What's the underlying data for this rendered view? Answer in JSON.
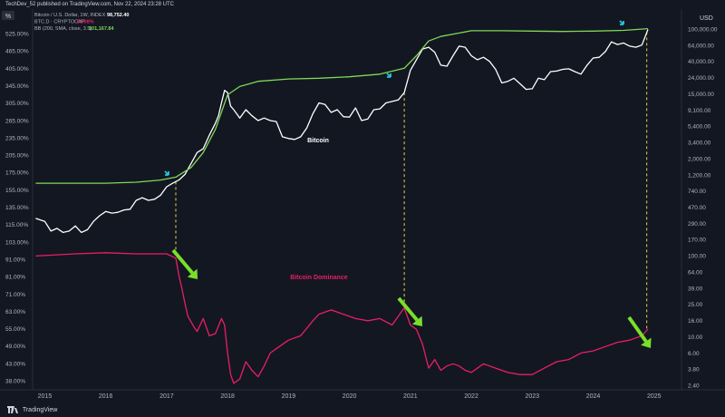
{
  "header": {
    "published": "TechDev_52 published on TradingView.com, Nov 22, 2024 23:28 UTC"
  },
  "legend": {
    "line1": {
      "symbol": "Bitcoin / U.S. Dollar, 1W, INDEX",
      "value": "98,752.40"
    },
    "line2": {
      "symbol": "BTC.D · CRYPTOCAP",
      "value": "61.08%"
    },
    "line3": {
      "symbol": "BB (200, SMA, close, 3.5)",
      "value": "101,167.84"
    }
  },
  "footer": {
    "brand": "TradingView"
  },
  "colors": {
    "background": "#131722",
    "btc": "#ffffff",
    "dominance": "#e91e63",
    "bb": "#7ed956",
    "arrow_green": "#79e02a",
    "arrow_cyan": "#26c6da",
    "guide": "#e8d44d"
  },
  "chart_data": {
    "type": "line",
    "left_axis": {
      "label": "%",
      "ticks": [
        "525.00%",
        "465.00%",
        "405.00%",
        "345.00%",
        "305.00%",
        "265.00%",
        "235.00%",
        "205.00%",
        "175.00%",
        "155.00%",
        "135.00%",
        "115.00%",
        "103.00%",
        "91.00%",
        "81.00%",
        "71.00%",
        "63.00%",
        "55.00%",
        "49.00%",
        "43.00%",
        "38.00%"
      ]
    },
    "right_axis": {
      "label": "USD",
      "scale": "log",
      "ticks": [
        "100,000.00",
        "64,000.00",
        "40,000.00",
        "24,000.00",
        "15,000.00",
        "9,100.00",
        "5,400.00",
        "3,400.00",
        "2,000.00",
        "1,200.00",
        "740.00",
        "470.00",
        "290.00",
        "170.00",
        "100.00",
        "64.00",
        "39.00",
        "25.00",
        "16.00",
        "10.00",
        "6.00",
        "3.80",
        "2.40"
      ]
    },
    "x_ticks": [
      "2015",
      "2016",
      "2017",
      "2018",
      "2019",
      "2020",
      "2021",
      "2022",
      "2023",
      "2024",
      "2025"
    ],
    "annotations": [
      "Bitcoin",
      "Bitcoin Dominance"
    ],
    "guide_years": [
      2017.15,
      2020.9,
      2024.88
    ],
    "series": [
      {
        "name": "Bitcoin / U.S. Dollar",
        "x": [
          2014.85,
          2015.0,
          2015.1,
          2015.2,
          2015.3,
          2015.4,
          2015.5,
          2015.6,
          2015.7,
          2015.8,
          2015.9,
          2016.0,
          2016.1,
          2016.2,
          2016.3,
          2016.4,
          2016.5,
          2016.6,
          2016.7,
          2016.8,
          2016.9,
          2017.0,
          2017.1,
          2017.2,
          2017.3,
          2017.4,
          2017.5,
          2017.6,
          2017.7,
          2017.8,
          2017.85,
          2017.9,
          2017.95,
          2018.0,
          2018.05,
          2018.1,
          2018.2,
          2018.3,
          2018.4,
          2018.5,
          2018.6,
          2018.7,
          2018.8,
          2018.9,
          2019.0,
          2019.1,
          2019.2,
          2019.3,
          2019.4,
          2019.5,
          2019.6,
          2019.7,
          2019.8,
          2019.9,
          2020.0,
          2020.1,
          2020.2,
          2020.3,
          2020.4,
          2020.5,
          2020.6,
          2020.7,
          2020.8,
          2020.9,
          2021.0,
          2021.1,
          2021.2,
          2021.3,
          2021.4,
          2021.5,
          2021.6,
          2021.7,
          2021.8,
          2021.9,
          2022.0,
          2022.1,
          2022.2,
          2022.3,
          2022.4,
          2022.5,
          2022.6,
          2022.7,
          2022.8,
          2022.9,
          2023.0,
          2023.1,
          2023.2,
          2023.3,
          2023.4,
          2023.5,
          2023.6,
          2023.7,
          2023.8,
          2023.9,
          2024.0,
          2024.1,
          2024.2,
          2024.3,
          2024.4,
          2024.5,
          2024.6,
          2024.7,
          2024.8,
          2024.9
        ],
        "values": [
          350,
          320,
          240,
          260,
          230,
          240,
          280,
          230,
          250,
          320,
          380,
          430,
          410,
          420,
          450,
          460,
          600,
          650,
          600,
          620,
          700,
          900,
          1000,
          1100,
          1300,
          1800,
          2500,
          2800,
          4200,
          6000,
          7500,
          11000,
          16000,
          15000,
          10000,
          9000,
          7000,
          9000,
          7500,
          6500,
          7000,
          6500,
          6300,
          4000,
          3800,
          3700,
          4000,
          5200,
          8000,
          11000,
          10500,
          8300,
          9000,
          7300,
          7200,
          9500,
          6500,
          6800,
          9000,
          9200,
          11000,
          11500,
          12000,
          15000,
          29000,
          40000,
          55000,
          58000,
          50000,
          34000,
          33000,
          45000,
          60000,
          58000,
          45000,
          40000,
          43000,
          38000,
          30000,
          20000,
          21000,
          23000,
          19500,
          16500,
          16800,
          23000,
          22000,
          28000,
          28500,
          30000,
          30500,
          28000,
          26000,
          34000,
          42000,
          43000,
          51000,
          68000,
          63000,
          66000,
          60000,
          58000,
          62000,
          98752
        ]
      },
      {
        "name": "BB (200, SMA, close, 3.5)",
        "x": [
          2014.85,
          2015.5,
          2016.0,
          2016.5,
          2016.9,
          2017.15,
          2017.4,
          2017.6,
          2017.8,
          2018.0,
          2018.2,
          2018.5,
          2019.0,
          2019.5,
          2020.0,
          2020.5,
          2020.9,
          2021.1,
          2021.3,
          2021.5,
          2022.0,
          2022.5,
          2023.0,
          2023.5,
          2024.0,
          2024.5,
          2024.9
        ],
        "values": [
          1000,
          1000,
          1000,
          1030,
          1100,
          1200,
          1600,
          2500,
          5000,
          14000,
          18000,
          21000,
          22500,
          23000,
          24000,
          26000,
          31000,
          45000,
          70000,
          80000,
          95000,
          95000,
          94000,
          93000,
          94000,
          96000,
          101167.84
        ]
      },
      {
        "name": "BTC.D",
        "x": [
          2014.85,
          2015.5,
          2016.0,
          2016.5,
          2017.0,
          2017.15,
          2017.2,
          2017.25,
          2017.3,
          2017.35,
          2017.45,
          2017.5,
          2017.55,
          2017.6,
          2017.7,
          2017.8,
          2017.9,
          2017.95,
          2018.0,
          2018.05,
          2018.1,
          2018.2,
          2018.3,
          2018.4,
          2018.5,
          2018.6,
          2018.7,
          2018.8,
          2019.0,
          2019.2,
          2019.4,
          2019.5,
          2019.7,
          2019.9,
          2020.1,
          2020.3,
          2020.5,
          2020.7,
          2020.9,
          2021.0,
          2021.1,
          2021.2,
          2021.3,
          2021.4,
          2021.5,
          2021.6,
          2021.7,
          2021.8,
          2021.9,
          2022.0,
          2022.2,
          2022.4,
          2022.6,
          2022.8,
          2023.0,
          2023.2,
          2023.4,
          2023.6,
          2023.8,
          2024.0,
          2024.2,
          2024.4,
          2024.6,
          2024.8,
          2024.9
        ],
        "values": [
          95,
          96,
          96.5,
          96,
          96,
          94,
          86,
          80,
          73,
          67,
          62,
          60,
          63,
          66,
          58,
          59,
          66,
          63,
          50,
          40,
          36,
          38,
          46,
          42,
          39,
          44,
          50,
          52,
          56,
          58,
          65,
          68,
          70,
          68,
          66,
          65,
          66,
          63,
          71,
          63,
          61,
          54,
          43,
          47,
          42,
          44,
          45,
          44,
          42,
          41,
          45,
          43,
          41,
          40,
          40,
          43,
          46,
          47,
          50,
          51,
          53,
          55,
          56,
          58,
          61.08
        ]
      }
    ]
  }
}
